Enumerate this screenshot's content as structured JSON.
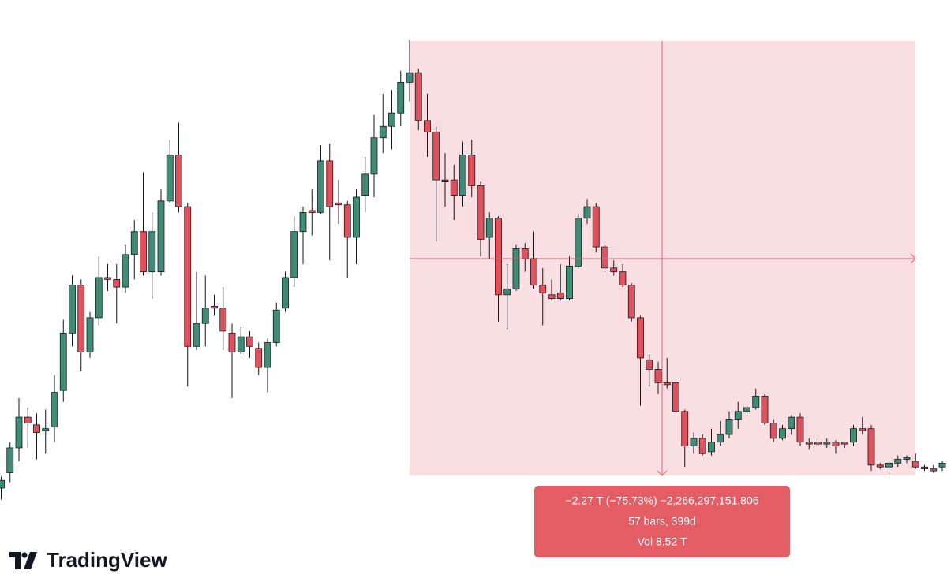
{
  "chart_data": {
    "type": "candlestick",
    "up_color": "#3f8b76",
    "down_color": "#e0525b",
    "ylim": [
      0.19,
      3.21
    ],
    "ohlc": [
      [
        0.66,
        0.72,
        0.6,
        0.7
      ],
      [
        0.74,
        0.9,
        0.69,
        0.87
      ],
      [
        0.87,
        1.13,
        0.8,
        1.03
      ],
      [
        1.03,
        1.08,
        0.87,
        1.0
      ],
      [
        0.99,
        1.05,
        0.81,
        0.95
      ],
      [
        0.96,
        1.07,
        0.84,
        0.97
      ],
      [
        0.98,
        1.25,
        0.9,
        1.16
      ],
      [
        1.17,
        1.54,
        1.11,
        1.47
      ],
      [
        1.47,
        1.77,
        1.4,
        1.72
      ],
      [
        1.72,
        1.75,
        1.27,
        1.37
      ],
      [
        1.37,
        1.58,
        1.34,
        1.55
      ],
      [
        1.55,
        1.87,
        1.51,
        1.76
      ],
      [
        1.76,
        1.83,
        1.69,
        1.75
      ],
      [
        1.75,
        1.83,
        1.52,
        1.71
      ],
      [
        1.71,
        1.93,
        1.68,
        1.88
      ],
      [
        1.88,
        2.06,
        1.75,
        2.0
      ],
      [
        2.0,
        2.31,
        1.77,
        1.79
      ],
      [
        1.79,
        2.1,
        1.65,
        2.0
      ],
      [
        1.79,
        2.22,
        1.77,
        2.16
      ],
      [
        2.16,
        2.48,
        2.15,
        2.4
      ],
      [
        2.4,
        2.57,
        2.1,
        2.13
      ],
      [
        2.13,
        2.15,
        1.19,
        1.4
      ],
      [
        1.4,
        1.79,
        1.38,
        1.52
      ],
      [
        1.52,
        1.77,
        1.4,
        1.6
      ],
      [
        1.61,
        1.67,
        1.56,
        1.6
      ],
      [
        1.6,
        1.71,
        1.38,
        1.48
      ],
      [
        1.47,
        1.52,
        1.13,
        1.37
      ],
      [
        1.37,
        1.5,
        1.36,
        1.45
      ],
      [
        1.45,
        1.48,
        1.34,
        1.4
      ],
      [
        1.39,
        1.42,
        1.25,
        1.29
      ],
      [
        1.29,
        1.44,
        1.16,
        1.42
      ],
      [
        1.42,
        1.63,
        1.4,
        1.59
      ],
      [
        1.6,
        1.79,
        1.58,
        1.76
      ],
      [
        1.76,
        2.08,
        1.71,
        2.0
      ],
      [
        2.0,
        2.13,
        1.83,
        2.1
      ],
      [
        2.11,
        2.22,
        1.98,
        2.1
      ],
      [
        2.1,
        2.45,
        2.09,
        2.37
      ],
      [
        2.37,
        2.46,
        1.85,
        2.13
      ],
      [
        2.15,
        2.27,
        2.04,
        2.14
      ],
      [
        2.14,
        2.16,
        1.76,
        1.97
      ],
      [
        1.97,
        2.22,
        1.83,
        2.18
      ],
      [
        2.19,
        2.39,
        2.1,
        2.3
      ],
      [
        2.3,
        2.61,
        2.18,
        2.49
      ],
      [
        2.49,
        2.72,
        2.41,
        2.55
      ],
      [
        2.55,
        2.74,
        2.43,
        2.62
      ],
      [
        2.62,
        2.84,
        2.55,
        2.78
      ],
      [
        2.78,
        3.0,
        2.68,
        2.83
      ],
      [
        2.83,
        2.85,
        2.53,
        2.58
      ],
      [
        2.58,
        2.72,
        2.39,
        2.52
      ],
      [
        2.52,
        2.55,
        1.95,
        2.27
      ],
      [
        2.27,
        2.41,
        2.13,
        2.26
      ],
      [
        2.27,
        2.35,
        2.06,
        2.19
      ],
      [
        2.19,
        2.47,
        2.13,
        2.4
      ],
      [
        2.4,
        2.48,
        2.18,
        2.24
      ],
      [
        2.24,
        2.26,
        1.87,
        1.96
      ],
      [
        1.97,
        2.1,
        1.86,
        2.07
      ],
      [
        2.07,
        2.08,
        1.53,
        1.67
      ],
      [
        1.67,
        1.83,
        1.49,
        1.7
      ],
      [
        1.7,
        1.93,
        1.69,
        1.91
      ],
      [
        1.91,
        1.94,
        1.79,
        1.86
      ],
      [
        1.86,
        2.0,
        1.7,
        1.72
      ],
      [
        1.72,
        1.81,
        1.51,
        1.68
      ],
      [
        1.67,
        1.75,
        1.64,
        1.65
      ],
      [
        1.68,
        1.83,
        1.64,
        1.65
      ],
      [
        1.65,
        1.87,
        1.64,
        1.82
      ],
      [
        1.82,
        2.09,
        1.81,
        2.07
      ],
      [
        2.07,
        2.17,
        2.04,
        2.13
      ],
      [
        2.13,
        2.15,
        1.89,
        1.92
      ],
      [
        1.92,
        1.93,
        1.79,
        1.81
      ],
      [
        1.81,
        1.85,
        1.77,
        1.79
      ],
      [
        1.79,
        1.83,
        1.71,
        1.72
      ],
      [
        1.72,
        1.73,
        1.53,
        1.55
      ],
      [
        1.55,
        1.56,
        1.09,
        1.34
      ],
      [
        1.33,
        1.36,
        1.19,
        1.28
      ],
      [
        1.28,
        1.32,
        1.15,
        1.21
      ],
      [
        1.21,
        1.34,
        1.18,
        1.2
      ],
      [
        1.21,
        1.23,
        1.05,
        1.06
      ],
      [
        1.06,
        1.07,
        0.77,
        0.88
      ],
      [
        0.88,
        0.95,
        0.84,
        0.92
      ],
      [
        0.92,
        0.94,
        0.83,
        0.84
      ],
      [
        0.85,
        0.97,
        0.83,
        0.9
      ],
      [
        0.9,
        1.01,
        0.88,
        0.94
      ],
      [
        0.94,
        1.06,
        0.92,
        1.02
      ],
      [
        1.02,
        1.11,
        0.97,
        1.06
      ],
      [
        1.06,
        1.09,
        1.05,
        1.08
      ],
      [
        1.08,
        1.18,
        1.07,
        1.14
      ],
      [
        1.14,
        1.15,
        0.99,
        1.0
      ],
      [
        1.0,
        1.02,
        0.9,
        0.92
      ],
      [
        0.92,
        0.99,
        0.91,
        0.97
      ],
      [
        0.97,
        1.04,
        0.94,
        1.03
      ],
      [
        1.03,
        1.05,
        0.88,
        0.9
      ],
      [
        0.9,
        0.92,
        0.86,
        0.89
      ],
      [
        0.9,
        0.92,
        0.88,
        0.89
      ],
      [
        0.89,
        0.92,
        0.87,
        0.9
      ],
      [
        0.9,
        0.91,
        0.84,
        0.88
      ],
      [
        0.9,
        0.9,
        0.87,
        0.89
      ],
      [
        0.9,
        0.99,
        0.88,
        0.97
      ],
      [
        0.97,
        1.03,
        0.94,
        0.96
      ],
      [
        0.97,
        0.99,
        0.75,
        0.78
      ],
      [
        0.78,
        0.79,
        0.76,
        0.77
      ],
      [
        0.77,
        0.8,
        0.73,
        0.79
      ],
      [
        0.79,
        0.83,
        0.77,
        0.81
      ],
      [
        0.81,
        0.83,
        0.79,
        0.82
      ],
      [
        0.8,
        0.84,
        0.76,
        0.77
      ],
      [
        0.77,
        0.78,
        0.75,
        0.76
      ],
      [
        0.76,
        0.78,
        0.74,
        0.75
      ],
      [
        0.77,
        0.8,
        0.75,
        0.79
      ]
    ],
    "annotations": [
      "−2.27 T (−75.73%) −2,266,297,151,806",
      "57 bars, 399d",
      "Vol 8.52 T"
    ],
    "brand": "TradingView"
  }
}
